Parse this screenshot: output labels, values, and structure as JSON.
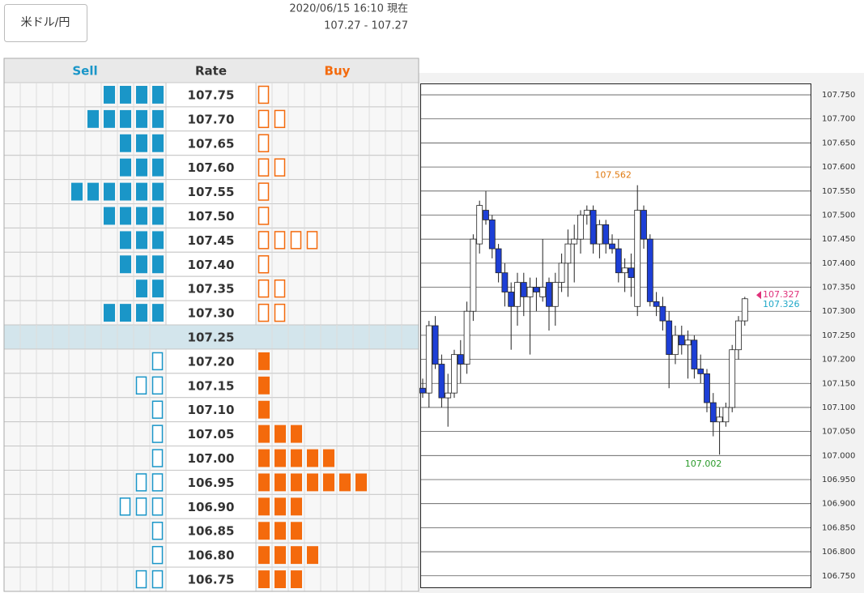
{
  "header": {
    "pair_button": "米ドル/円",
    "timestamp": "2020/06/15 16:10 現在",
    "quote": "107.27 - 107.27"
  },
  "order_book": {
    "columns": [
      "Sell",
      "Rate",
      "Buy"
    ],
    "sell_color": "#1a96c8",
    "buy_color": "#f46a0c",
    "rows": [
      {
        "rate": "107.75",
        "sell": 4,
        "buy": 1
      },
      {
        "rate": "107.70",
        "sell": 5,
        "buy": 2
      },
      {
        "rate": "107.65",
        "sell": 3,
        "buy": 1
      },
      {
        "rate": "107.60",
        "sell": 3,
        "buy": 2
      },
      {
        "rate": "107.55",
        "sell": 6,
        "buy": 1
      },
      {
        "rate": "107.50",
        "sell": 4,
        "buy": 1
      },
      {
        "rate": "107.45",
        "sell": 3,
        "buy": 4
      },
      {
        "rate": "107.40",
        "sell": 3,
        "buy": 1
      },
      {
        "rate": "107.35",
        "sell": 2,
        "buy": 2
      },
      {
        "rate": "107.30",
        "sell": 4,
        "buy": 2
      },
      {
        "rate": "107.25",
        "sell": 0,
        "buy": 0
      },
      {
        "rate": "107.20",
        "sell": 1,
        "buy": 1
      },
      {
        "rate": "107.15",
        "sell": 2,
        "buy": 1
      },
      {
        "rate": "107.10",
        "sell": 1,
        "buy": 1
      },
      {
        "rate": "107.05",
        "sell": 1,
        "buy": 3
      },
      {
        "rate": "107.00",
        "sell": 1,
        "buy": 5
      },
      {
        "rate": "106.95",
        "sell": 2,
        "buy": 7
      },
      {
        "rate": "106.90",
        "sell": 3,
        "buy": 3
      },
      {
        "rate": "106.85",
        "sell": 1,
        "buy": 3
      },
      {
        "rate": "106.80",
        "sell": 1,
        "buy": 4
      },
      {
        "rate": "106.75",
        "sell": 2,
        "buy": 3
      }
    ]
  },
  "chart_data": {
    "type": "candlestick",
    "up_color": "#ffffff",
    "down_color": "#1d3fd6",
    "open": [
      107.14,
      107.13,
      107.27,
      107.19,
      107.12,
      107.13,
      107.21,
      107.19,
      107.3,
      107.44,
      107.51,
      107.49,
      107.43,
      107.38,
      107.34,
      107.31,
      107.36,
      107.33,
      107.35,
      107.33,
      107.36,
      107.31,
      107.36,
      107.4,
      107.44,
      107.45,
      107.5,
      107.51,
      107.44,
      107.48,
      107.44,
      107.43,
      107.38,
      107.39,
      107.31,
      107.51,
      107.45,
      107.32,
      107.31,
      107.28,
      107.21,
      107.25,
      107.23,
      107.24,
      107.18,
      107.17,
      107.11,
      107.07,
      107.07,
      107.1,
      107.22,
      107.28
    ],
    "high": [
      107.16,
      107.28,
      107.29,
      107.21,
      107.17,
      107.22,
      107.24,
      107.32,
      107.46,
      107.53,
      107.55,
      107.5,
      107.44,
      107.4,
      107.36,
      107.38,
      107.38,
      107.37,
      107.37,
      107.45,
      107.37,
      107.38,
      107.42,
      107.47,
      107.48,
      107.51,
      107.52,
      107.52,
      107.49,
      107.49,
      107.46,
      107.45,
      107.41,
      107.42,
      107.562,
      107.52,
      107.46,
      107.34,
      107.33,
      107.3,
      107.27,
      107.27,
      107.26,
      107.25,
      107.21,
      107.18,
      107.13,
      107.1,
      107.11,
      107.23,
      107.29,
      107.33
    ],
    "low": [
      107.12,
      107.1,
      107.18,
      107.1,
      107.06,
      107.12,
      107.15,
      107.17,
      107.28,
      107.42,
      107.48,
      107.41,
      107.36,
      107.31,
      107.22,
      107.27,
      107.29,
      107.21,
      107.3,
      107.32,
      107.26,
      107.27,
      107.34,
      107.33,
      107.36,
      107.42,
      107.48,
      107.42,
      107.41,
      107.42,
      107.42,
      107.36,
      107.34,
      107.33,
      107.29,
      107.43,
      107.31,
      107.29,
      107.26,
      107.14,
      107.19,
      107.21,
      107.16,
      107.16,
      107.15,
      107.09,
      107.04,
      107.002,
      107.06,
      107.09,
      107.2,
      107.27
    ],
    "close": [
      107.13,
      107.27,
      107.19,
      107.12,
      107.13,
      107.21,
      107.19,
      107.3,
      107.45,
      107.52,
      107.49,
      107.43,
      107.38,
      107.34,
      107.31,
      107.36,
      107.33,
      107.35,
      107.34,
      107.35,
      107.31,
      107.36,
      107.4,
      107.44,
      107.45,
      107.5,
      107.51,
      107.44,
      107.48,
      107.44,
      107.43,
      107.38,
      107.39,
      107.37,
      107.51,
      107.45,
      107.32,
      107.31,
      107.28,
      107.21,
      107.25,
      107.23,
      107.24,
      107.18,
      107.17,
      107.11,
      107.07,
      107.08,
      107.1,
      107.22,
      107.28,
      107.326
    ],
    "ylim": [
      106.726,
      107.772
    ],
    "yticks": [
      {
        "value": 107.75,
        "label": "107.750"
      },
      {
        "value": 107.7,
        "label": "107.700"
      },
      {
        "value": 107.65,
        "label": "107.650"
      },
      {
        "value": 107.6,
        "label": "107.600"
      },
      {
        "value": 107.55,
        "label": "107.550"
      },
      {
        "value": 107.5,
        "label": "107.500"
      },
      {
        "value": 107.45,
        "label": "107.450"
      },
      {
        "value": 107.4,
        "label": "107.400"
      },
      {
        "value": 107.35,
        "label": "107.350"
      },
      {
        "value": 107.3,
        "label": "107.300"
      },
      {
        "value": 107.25,
        "label": "107.250"
      },
      {
        "value": 107.2,
        "label": "107.200"
      },
      {
        "value": 107.15,
        "label": "107.150"
      },
      {
        "value": 107.1,
        "label": "107.100"
      },
      {
        "value": 107.05,
        "label": "107.050"
      },
      {
        "value": 107,
        "label": "107.000"
      },
      {
        "value": 106.95,
        "label": "106.950"
      },
      {
        "value": 106.9,
        "label": "106.900"
      },
      {
        "value": 106.85,
        "label": "106.850"
      },
      {
        "value": 106.8,
        "label": "106.800"
      },
      {
        "value": 106.75,
        "label": "106.750"
      }
    ],
    "grid": true,
    "annotations": {
      "high": 107.562,
      "low": 107.002,
      "ask": 107.327,
      "bid": 107.326
    },
    "annotation_colors": {
      "high": "#e07a10",
      "low": "#2a9a2a",
      "ask": "#e0307a",
      "bid": "#20a8c8"
    }
  }
}
